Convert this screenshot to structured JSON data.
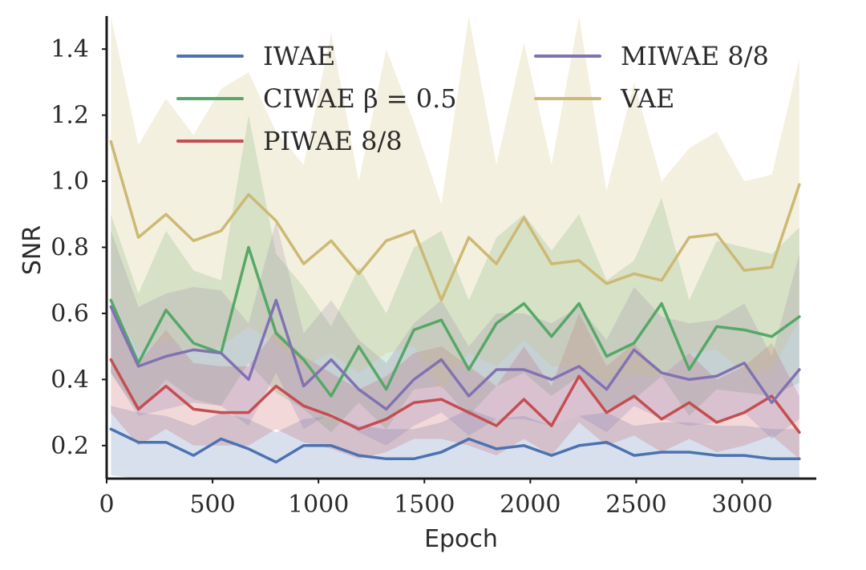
{
  "chart_data": {
    "type": "line",
    "title": "",
    "xlabel": "Epoch",
    "ylabel": "SNR",
    "xlim": [
      0,
      3350
    ],
    "ylim": [
      0.1,
      1.5
    ],
    "xticks": [
      0,
      500,
      1000,
      1500,
      2000,
      2500,
      3000
    ],
    "xtick_labels": [
      "0",
      "500",
      "1000",
      "1500",
      "2000",
      "2500",
      "3000"
    ],
    "yticks": [
      0.2,
      0.4,
      0.6,
      0.8,
      1.0,
      1.2,
      1.4
    ],
    "ytick_labels": [
      "0.2",
      "0.4",
      "0.6",
      "0.8",
      "1.0",
      "1.2",
      "1.4"
    ],
    "grid": false,
    "legend_position": "top",
    "x": [
      20,
      150,
      280,
      410,
      540,
      670,
      800,
      930,
      1060,
      1190,
      1320,
      1450,
      1580,
      1710,
      1840,
      1970,
      2100,
      2230,
      2360,
      2490,
      2620,
      2750,
      2880,
      3010,
      3140,
      3270
    ],
    "series": [
      {
        "name": "IWAE",
        "color": "#4c72b0",
        "values": [
          0.25,
          0.21,
          0.21,
          0.17,
          0.22,
          0.19,
          0.15,
          0.2,
          0.2,
          0.17,
          0.16,
          0.16,
          0.18,
          0.22,
          0.19,
          0.2,
          0.17,
          0.2,
          0.21,
          0.17,
          0.18,
          0.18,
          0.17,
          0.17,
          0.16,
          0.16
        ],
        "lower": [
          0.11,
          0.1,
          0.1,
          0.1,
          0.1,
          0.1,
          0.1,
          0.1,
          0.1,
          0.1,
          0.1,
          0.1,
          0.1,
          0.1,
          0.1,
          0.1,
          0.1,
          0.1,
          0.1,
          0.1,
          0.1,
          0.1,
          0.1,
          0.1,
          0.1,
          0.1
        ],
        "upper": [
          0.32,
          0.3,
          0.29,
          0.26,
          0.3,
          0.28,
          0.24,
          0.28,
          0.29,
          0.26,
          0.25,
          0.25,
          0.27,
          0.31,
          0.28,
          0.29,
          0.26,
          0.29,
          0.3,
          0.26,
          0.27,
          0.27,
          0.26,
          0.26,
          0.25,
          0.25
        ]
      },
      {
        "name": "CIWAE β = 0.5",
        "color": "#55a868",
        "values": [
          0.64,
          0.45,
          0.61,
          0.51,
          0.48,
          0.8,
          0.54,
          0.46,
          0.35,
          0.5,
          0.37,
          0.55,
          0.58,
          0.43,
          0.57,
          0.63,
          0.53,
          0.63,
          0.47,
          0.51,
          0.63,
          0.43,
          0.56,
          0.55,
          0.53,
          0.59
        ],
        "lower": [
          0.42,
          0.3,
          0.4,
          0.34,
          0.32,
          0.45,
          0.36,
          0.31,
          0.24,
          0.33,
          0.25,
          0.37,
          0.38,
          0.29,
          0.38,
          0.42,
          0.35,
          0.41,
          0.31,
          0.34,
          0.41,
          0.29,
          0.37,
          0.36,
          0.35,
          0.39
        ],
        "upper": [
          0.9,
          0.66,
          0.85,
          0.73,
          0.7,
          1.2,
          0.78,
          0.68,
          0.56,
          0.74,
          0.6,
          0.8,
          0.85,
          0.64,
          0.83,
          0.9,
          0.79,
          0.9,
          0.7,
          0.76,
          0.95,
          0.64,
          0.82,
          0.8,
          0.78,
          0.86
        ]
      },
      {
        "name": "PIWAE 8/8",
        "color": "#c44e52",
        "values": [
          0.46,
          0.31,
          0.38,
          0.31,
          0.3,
          0.3,
          0.38,
          0.32,
          0.29,
          0.25,
          0.28,
          0.33,
          0.34,
          0.3,
          0.26,
          0.34,
          0.26,
          0.41,
          0.3,
          0.35,
          0.28,
          0.33,
          0.27,
          0.3,
          0.35,
          0.24
        ],
        "lower": [
          0.3,
          0.2,
          0.25,
          0.2,
          0.2,
          0.2,
          0.25,
          0.21,
          0.19,
          0.16,
          0.18,
          0.22,
          0.22,
          0.2,
          0.17,
          0.22,
          0.17,
          0.27,
          0.2,
          0.23,
          0.18,
          0.22,
          0.18,
          0.2,
          0.23,
          0.16
        ],
        "upper": [
          0.65,
          0.45,
          0.55,
          0.45,
          0.44,
          0.44,
          0.55,
          0.47,
          0.42,
          0.37,
          0.41,
          0.48,
          0.5,
          0.44,
          0.38,
          0.5,
          0.38,
          0.6,
          0.44,
          0.51,
          0.41,
          0.48,
          0.4,
          0.44,
          0.51,
          0.35
        ]
      },
      {
        "name": "MIWAE 8/8",
        "color": "#8172b2",
        "values": [
          0.62,
          0.44,
          0.47,
          0.49,
          0.48,
          0.4,
          0.64,
          0.38,
          0.46,
          0.37,
          0.31,
          0.4,
          0.46,
          0.35,
          0.43,
          0.43,
          0.4,
          0.44,
          0.37,
          0.49,
          0.42,
          0.4,
          0.41,
          0.45,
          0.33,
          0.43
        ],
        "lower": [
          0.42,
          0.29,
          0.31,
          0.33,
          0.32,
          0.26,
          0.42,
          0.25,
          0.3,
          0.24,
          0.2,
          0.26,
          0.3,
          0.23,
          0.28,
          0.28,
          0.26,
          0.29,
          0.24,
          0.32,
          0.28,
          0.26,
          0.27,
          0.3,
          0.22,
          0.28
        ],
        "upper": [
          0.85,
          0.62,
          0.66,
          0.68,
          0.67,
          0.57,
          0.88,
          0.54,
          0.64,
          0.52,
          0.45,
          0.57,
          0.64,
          0.5,
          0.6,
          0.6,
          0.57,
          0.62,
          0.52,
          0.68,
          0.59,
          0.57,
          0.58,
          0.63,
          0.47,
          0.78
        ]
      },
      {
        "name": "VAE",
        "color": "#ccb974",
        "values": [
          1.12,
          0.83,
          0.9,
          0.82,
          0.85,
          0.96,
          0.88,
          0.75,
          0.82,
          0.72,
          0.82,
          0.85,
          0.64,
          0.83,
          0.75,
          0.89,
          0.75,
          0.76,
          0.69,
          0.72,
          0.7,
          0.83,
          0.84,
          0.73,
          0.74,
          0.99
        ],
        "lower": [
          0.65,
          0.48,
          0.52,
          0.48,
          0.5,
          0.56,
          0.51,
          0.44,
          0.48,
          0.42,
          0.48,
          0.5,
          0.37,
          0.48,
          0.44,
          0.52,
          0.44,
          0.44,
          0.4,
          0.42,
          0.41,
          0.48,
          0.49,
          0.42,
          0.43,
          0.58
        ],
        "upper": [
          1.5,
          1.11,
          1.25,
          1.14,
          1.28,
          1.33,
          1.15,
          1.05,
          1.45,
          1.0,
          1.4,
          1.18,
          0.93,
          1.5,
          1.05,
          1.42,
          1.05,
          1.5,
          0.97,
          1.3,
          1.0,
          1.1,
          1.15,
          1.0,
          1.02,
          1.37
        ]
      }
    ]
  }
}
